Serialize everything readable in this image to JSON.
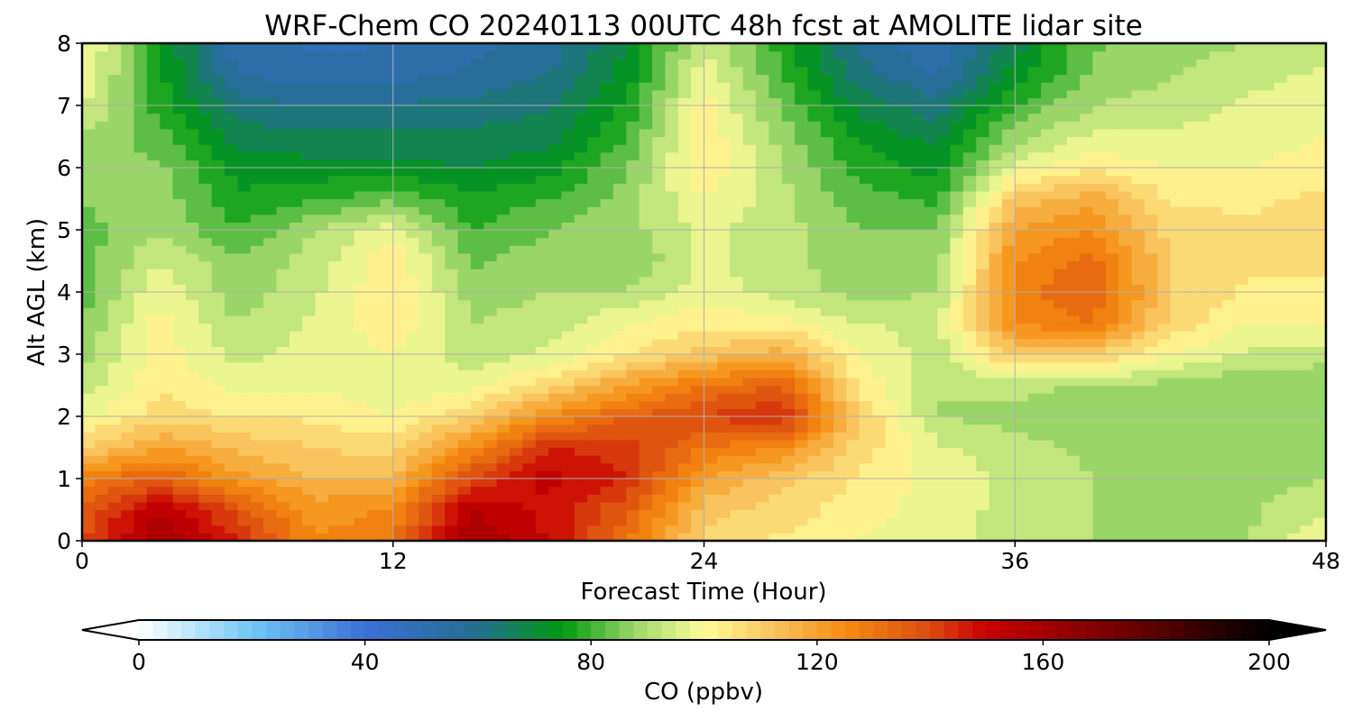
{
  "chart_data": {
    "type": "heatmap",
    "title": "WRF-Chem CO  20240113 00UTC 48h fcst at AMOLITE lidar site",
    "xlabel": "Forecast Time (Hour)",
    "ylabel": "Alt AGL (km)",
    "xlim": [
      0,
      48
    ],
    "ylim": [
      0,
      8
    ],
    "x_ticks": [
      0,
      12,
      24,
      36,
      48
    ],
    "y_ticks": [
      0,
      1,
      2,
      3,
      4,
      5,
      6,
      7,
      8
    ],
    "grid": true,
    "x": [
      0,
      3,
      6,
      9,
      12,
      15,
      18,
      21,
      24,
      27,
      30,
      33,
      36,
      39,
      42,
      45,
      48
    ],
    "y": [
      0,
      0.5,
      1,
      1.5,
      2,
      2.5,
      3,
      3.5,
      4,
      4.5,
      5,
      5.5,
      6,
      6.5,
      7,
      7.5,
      8
    ],
    "z": [
      [
        140,
        160,
        145,
        125,
        130,
        160,
        150,
        130,
        108,
        104,
        100,
        97,
        92,
        90,
        89,
        90,
        100
      ],
      [
        135,
        155,
        138,
        122,
        126,
        155,
        148,
        136,
        112,
        108,
        102,
        98,
        93,
        90,
        89,
        89,
        94
      ],
      [
        128,
        135,
        122,
        115,
        116,
        140,
        152,
        145,
        120,
        112,
        104,
        98,
        94,
        90,
        89,
        88,
        90
      ],
      [
        110,
        120,
        114,
        110,
        108,
        125,
        145,
        142,
        130,
        125,
        108,
        96,
        92,
        89,
        88,
        87,
        88
      ],
      [
        98,
        108,
        105,
        104,
        100,
        110,
        125,
        135,
        140,
        145,
        110,
        90,
        88,
        86,
        85,
        85,
        86
      ],
      [
        92,
        104,
        98,
        99,
        96,
        98,
        108,
        120,
        130,
        135,
        104,
        90,
        92,
        89,
        88,
        86,
        86
      ],
      [
        88,
        103,
        93,
        97,
        100,
        92,
        96,
        105,
        112,
        118,
        100,
        92,
        112,
        110,
        100,
        94,
        92
      ],
      [
        85,
        102,
        90,
        96,
        104,
        90,
        92,
        100,
        104,
        102,
        95,
        94,
        125,
        130,
        108,
        100,
        100
      ],
      [
        82,
        99,
        87,
        94,
        105,
        88,
        90,
        90,
        98,
        93,
        88,
        90,
        128,
        135,
        110,
        104,
        104
      ],
      [
        82,
        95,
        86,
        92,
        104,
        84,
        88,
        85,
        96,
        92,
        86,
        88,
        125,
        132,
        110,
        106,
        106
      ],
      [
        83,
        90,
        80,
        90,
        98,
        80,
        85,
        88,
        96,
        92,
        85,
        85,
        120,
        125,
        108,
        106,
        108
      ],
      [
        85,
        88,
        76,
        79,
        84,
        76,
        80,
        87,
        100,
        92,
        82,
        79,
        112,
        118,
        104,
        104,
        106
      ],
      [
        88,
        86,
        73,
        72,
        72,
        70,
        73,
        85,
        104,
        90,
        78,
        73,
        98,
        104,
        100,
        100,
        102
      ],
      [
        90,
        82,
        68,
        66,
        66,
        66,
        68,
        80,
        104,
        88,
        74,
        68,
        88,
        96,
        96,
        98,
        100
      ],
      [
        96,
        78,
        62,
        60,
        60,
        62,
        64,
        76,
        102,
        84,
        68,
        62,
        80,
        90,
        92,
        96,
        98
      ],
      [
        100,
        76,
        55,
        52,
        53,
        56,
        60,
        72,
        98,
        80,
        62,
        54,
        72,
        86,
        90,
        93,
        96
      ],
      [
        102,
        75,
        52,
        49,
        50,
        53,
        57,
        70,
        95,
        78,
        59,
        50,
        68,
        84,
        88,
        90,
        92
      ]
    ],
    "colorbar": {
      "label": "CO  (ppbv)",
      "vmin": 0,
      "vmax": 200,
      "ticks": [
        0,
        40,
        80,
        120,
        160,
        200
      ],
      "extend": "both",
      "placement": "bottom"
    },
    "colormap": [
      {
        "v": 0,
        "c": "#ffffff"
      },
      {
        "v": 20,
        "c": "#70c8f5"
      },
      {
        "v": 40,
        "c": "#3d6fd6"
      },
      {
        "v": 60,
        "c": "#236f8f"
      },
      {
        "v": 75,
        "c": "#009a10"
      },
      {
        "v": 88,
        "c": "#9fd86a"
      },
      {
        "v": 100,
        "c": "#fffc99"
      },
      {
        "v": 112,
        "c": "#f9c560"
      },
      {
        "v": 125,
        "c": "#f58c10"
      },
      {
        "v": 140,
        "c": "#dc4a10"
      },
      {
        "v": 150,
        "c": "#c80000"
      },
      {
        "v": 175,
        "c": "#6e0000"
      },
      {
        "v": 200,
        "c": "#000000"
      }
    ]
  }
}
